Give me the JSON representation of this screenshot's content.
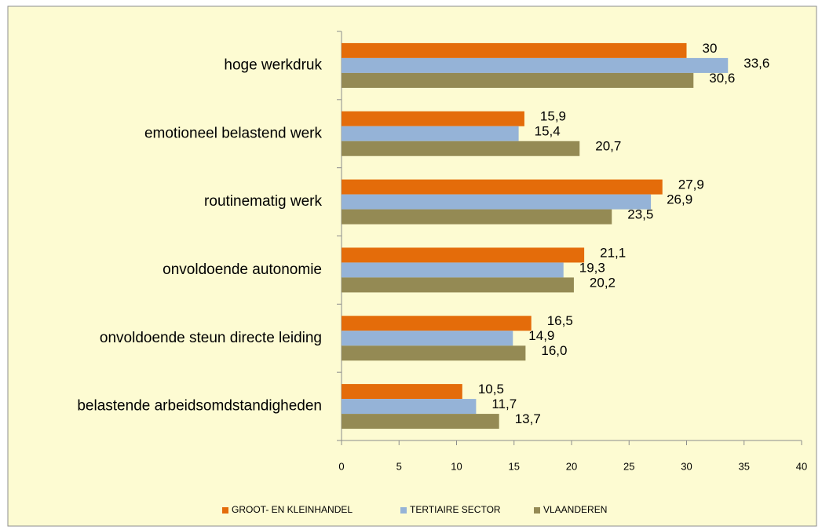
{
  "chart_data": {
    "type": "hbar",
    "categories": [
      "hoge werkdruk",
      "emotioneel belastend werk",
      "routinematig werk",
      "onvoldoende autonomie",
      "onvoldoende steun directe leiding",
      "belastende arbeidsomdstandigheden"
    ],
    "series": [
      {
        "name": "GROOT- EN KLEINHANDEL",
        "color": "#e46c0a",
        "values": [
          30,
          15.9,
          27.9,
          21.1,
          16.5,
          10.5
        ],
        "value_labels": [
          "30",
          "15,9",
          "27,9",
          "21,1",
          "16,5",
          "10,5"
        ]
      },
      {
        "name": "TERTIAIRE SECTOR",
        "color": "#95b3d7",
        "values": [
          33.6,
          15.4,
          26.9,
          19.3,
          14.9,
          11.7
        ],
        "value_labels": [
          "33,6",
          "15,4",
          "26,9",
          "19,3",
          "14,9",
          "11,7"
        ]
      },
      {
        "name": "VLAANDEREN",
        "color": "#948a54",
        "values": [
          30.6,
          20.7,
          23.5,
          20.2,
          16.0,
          13.7
        ],
        "value_labels": [
          "30,6",
          "20,7",
          "23,5",
          "20,2",
          "16,0",
          "13,7"
        ]
      }
    ],
    "xlim": [
      0,
      40
    ],
    "xticks": [
      0,
      5,
      10,
      15,
      20,
      25,
      30,
      35,
      40
    ],
    "grid": false,
    "legend": "bottom"
  }
}
